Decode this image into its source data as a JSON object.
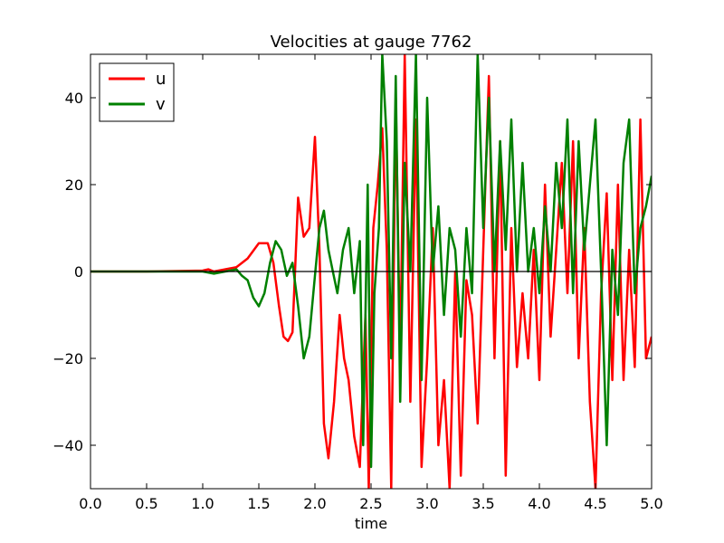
{
  "chart_data": {
    "type": "line",
    "title": "Velocities at gauge 7762",
    "xlabel": "time",
    "ylabel": "",
    "xlim": [
      0.0,
      5.0
    ],
    "ylim": [
      -50,
      50
    ],
    "x_ticks": [
      "0.0",
      "0.5",
      "1.0",
      "1.5",
      "2.0",
      "2.5",
      "3.0",
      "3.5",
      "4.0",
      "4.5",
      "5.0"
    ],
    "y_ticks": [
      "−40",
      "−20",
      "0",
      "20",
      "40"
    ],
    "y_tick_values": [
      -40,
      -20,
      0,
      20,
      40
    ],
    "x_tick_values": [
      0.0,
      0.5,
      1.0,
      1.5,
      2.0,
      2.5,
      3.0,
      3.5,
      4.0,
      4.5,
      5.0
    ],
    "grid": false,
    "legend_position": "top-left",
    "zero_line": true,
    "series": [
      {
        "name": "u",
        "color": "#ff0000",
        "x": [
          0.0,
          0.5,
          1.0,
          1.05,
          1.1,
          1.2,
          1.3,
          1.4,
          1.5,
          1.58,
          1.63,
          1.68,
          1.72,
          1.76,
          1.8,
          1.85,
          1.9,
          1.95,
          2.0,
          2.04,
          2.08,
          2.12,
          2.17,
          2.22,
          2.26,
          2.3,
          2.35,
          2.4,
          2.45,
          2.48,
          2.52,
          2.56,
          2.6,
          2.64,
          2.68,
          2.72,
          2.76,
          2.8,
          2.85,
          2.9,
          2.95,
          3.0,
          3.05,
          3.1,
          3.15,
          3.2,
          3.25,
          3.3,
          3.35,
          3.4,
          3.45,
          3.5,
          3.55,
          3.6,
          3.65,
          3.7,
          3.75,
          3.8,
          3.85,
          3.9,
          3.95,
          4.0,
          4.05,
          4.1,
          4.15,
          4.2,
          4.25,
          4.3,
          4.35,
          4.4,
          4.45,
          4.5,
          4.55,
          4.6,
          4.65,
          4.7,
          4.75,
          4.8,
          4.85,
          4.9,
          4.95,
          5.0
        ],
        "values": [
          0,
          0,
          0.2,
          0.5,
          0,
          0.5,
          1,
          3,
          6.5,
          6.5,
          2,
          -8,
          -15,
          -16,
          -14,
          17,
          8,
          10,
          31,
          5,
          -35,
          -43,
          -30,
          -10,
          -20,
          -25,
          -38,
          -45,
          -10,
          -50,
          10,
          20,
          33,
          5,
          -50,
          40,
          -20,
          50,
          -30,
          35,
          -45,
          -20,
          10,
          -40,
          -25,
          -50,
          0,
          -47,
          -2,
          -10,
          -35,
          5,
          45,
          -20,
          30,
          -47,
          10,
          -22,
          -5,
          -20,
          5,
          -25,
          20,
          -15,
          5,
          25,
          -5,
          30,
          -20,
          10,
          -30,
          -50,
          -5,
          18,
          -25,
          20,
          -25,
          5,
          -22,
          35,
          -20,
          -15
        ]
      },
      {
        "name": "v",
        "color": "#008000",
        "x": [
          0.0,
          0.5,
          1.0,
          1.1,
          1.2,
          1.3,
          1.35,
          1.4,
          1.45,
          1.5,
          1.55,
          1.6,
          1.65,
          1.7,
          1.75,
          1.8,
          1.85,
          1.9,
          1.95,
          2.0,
          2.04,
          2.08,
          2.12,
          2.16,
          2.2,
          2.25,
          2.3,
          2.35,
          2.4,
          2.43,
          2.47,
          2.5,
          2.53,
          2.57,
          2.6,
          2.64,
          2.68,
          2.72,
          2.76,
          2.8,
          2.85,
          2.9,
          2.95,
          3.0,
          3.05,
          3.1,
          3.15,
          3.2,
          3.25,
          3.3,
          3.35,
          3.4,
          3.45,
          3.5,
          3.55,
          3.6,
          3.65,
          3.7,
          3.75,
          3.8,
          3.85,
          3.9,
          3.95,
          4.0,
          4.05,
          4.1,
          4.15,
          4.2,
          4.25,
          4.3,
          4.35,
          4.4,
          4.45,
          4.5,
          4.55,
          4.6,
          4.65,
          4.7,
          4.75,
          4.8,
          4.85,
          4.9,
          4.95,
          5.0
        ],
        "values": [
          0,
          0,
          0,
          -0.5,
          0,
          0.5,
          -1,
          -2,
          -6,
          -8,
          -5,
          2,
          7,
          5,
          -1,
          2,
          -8,
          -20,
          -15,
          -1,
          10,
          14,
          5,
          0,
          -5,
          5,
          10,
          -5,
          7,
          -40,
          20,
          -45,
          -5,
          10,
          50,
          30,
          -20,
          45,
          -30,
          25,
          0,
          50,
          -25,
          40,
          0,
          15,
          -10,
          10,
          5,
          -15,
          10,
          -5,
          50,
          10,
          40,
          0,
          30,
          5,
          35,
          0,
          25,
          0,
          10,
          -5,
          15,
          0,
          25,
          10,
          35,
          -5,
          30,
          5,
          20,
          35,
          0,
          -40,
          5,
          -10,
          25,
          35,
          -5,
          10,
          15,
          22
        ]
      }
    ]
  }
}
